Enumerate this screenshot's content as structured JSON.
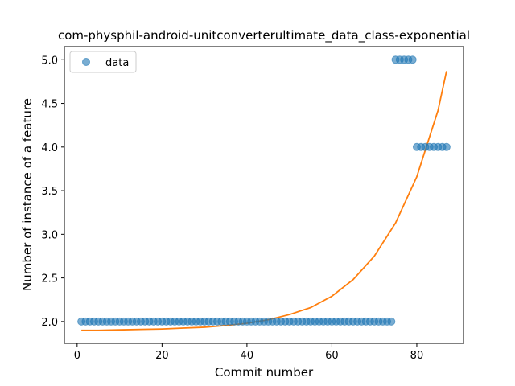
{
  "chart_data": {
    "type": "scatter",
    "title": "com-physphil-android-unitconverterultimate_data_class-exponential",
    "xlabel": "Commit number",
    "ylabel": "Number of instance of a feature",
    "xlim": [
      -3,
      91
    ],
    "ylim": [
      1.75,
      5.15
    ],
    "xticks": [
      0,
      20,
      40,
      60,
      80
    ],
    "yticks": [
      2.0,
      2.5,
      3.0,
      3.5,
      4.0,
      4.5,
      5.0
    ],
    "ytick_labels": [
      "2.0",
      "2.5",
      "3.0",
      "3.5",
      "4.0",
      "4.5",
      "5.0"
    ],
    "grid": false,
    "legend": {
      "position": "upper-left",
      "entries": [
        "data"
      ]
    },
    "colors": {
      "data": "#1f77b4",
      "fit": "#ff7f0e"
    },
    "series": [
      {
        "name": "data",
        "x": [
          1,
          2,
          3,
          4,
          5,
          6,
          7,
          8,
          9,
          10,
          11,
          12,
          13,
          14,
          15,
          16,
          17,
          18,
          19,
          20,
          21,
          22,
          23,
          24,
          25,
          26,
          27,
          28,
          29,
          30,
          31,
          32,
          33,
          34,
          35,
          36,
          37,
          38,
          39,
          40,
          41,
          42,
          43,
          44,
          45,
          46,
          47,
          48,
          49,
          50,
          51,
          52,
          53,
          54,
          55,
          56,
          57,
          58,
          59,
          60,
          61,
          62,
          63,
          64,
          65,
          66,
          67,
          68,
          69,
          70,
          71,
          72,
          73,
          74,
          75,
          76,
          77,
          78,
          79,
          80,
          81,
          82,
          83,
          84,
          85,
          86,
          87
        ],
        "y": [
          2,
          2,
          2,
          2,
          2,
          2,
          2,
          2,
          2,
          2,
          2,
          2,
          2,
          2,
          2,
          2,
          2,
          2,
          2,
          2,
          2,
          2,
          2,
          2,
          2,
          2,
          2,
          2,
          2,
          2,
          2,
          2,
          2,
          2,
          2,
          2,
          2,
          2,
          2,
          2,
          2,
          2,
          2,
          2,
          2,
          2,
          2,
          2,
          2,
          2,
          2,
          2,
          2,
          2,
          2,
          2,
          2,
          2,
          2,
          2,
          2,
          2,
          2,
          2,
          2,
          2,
          2,
          2,
          2,
          2,
          2,
          2,
          2,
          2,
          5,
          5,
          5,
          5,
          5,
          4,
          4,
          4,
          4,
          4,
          4,
          4,
          4
        ]
      },
      {
        "type": "line",
        "x": [
          1,
          5,
          10,
          15,
          20,
          25,
          30,
          35,
          40,
          45,
          50,
          55,
          60,
          65,
          70,
          75,
          80,
          85,
          87
        ],
        "y": [
          1.9,
          1.9,
          1.905,
          1.91,
          1.915,
          1.925,
          1.935,
          1.955,
          1.98,
          2.02,
          2.08,
          2.16,
          2.29,
          2.48,
          2.75,
          3.13,
          3.66,
          4.42,
          4.87
        ]
      }
    ]
  }
}
